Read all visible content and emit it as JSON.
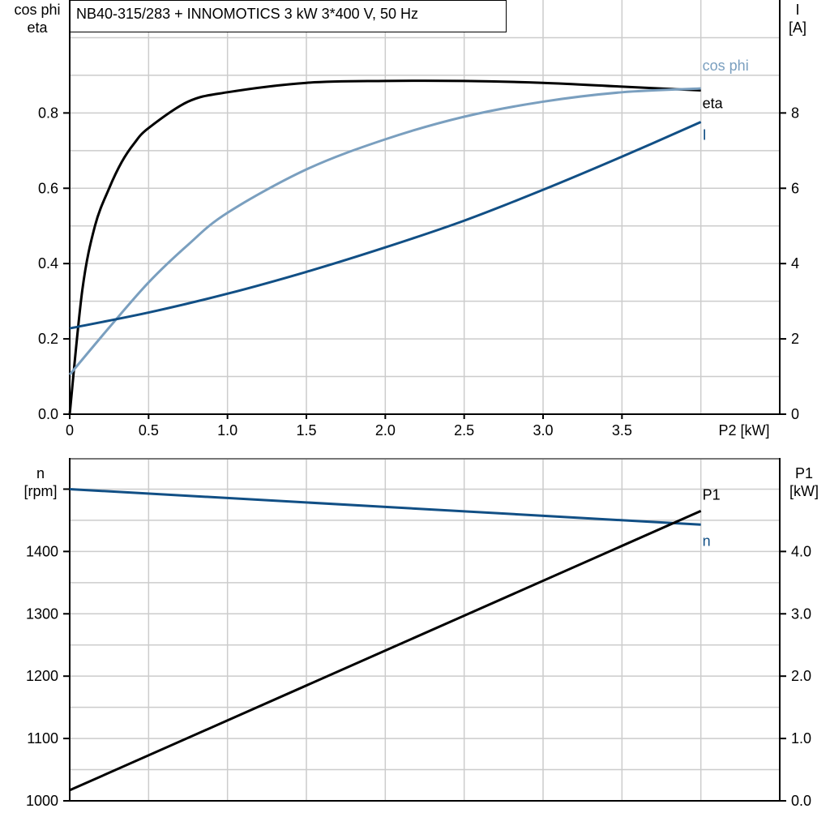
{
  "title": "NB40-315/283 + INNOMOTICS   3 kW   3*400 V, 50 Hz",
  "colors": {
    "eta": "#000000",
    "cos_phi": "#7a9fbf",
    "I": "#114f85",
    "n": "#114f85",
    "P1": "#000000",
    "grid": "#cccccc"
  },
  "chart_data": [
    {
      "type": "line",
      "x_label": "P2 [kW]",
      "x_ticks": [
        "0",
        "0.5",
        "1.0",
        "1.5",
        "2.0",
        "2.5",
        "3.0",
        "3.5"
      ],
      "xlim": [
        0,
        4.5
      ],
      "left_axis": {
        "label_lines": [
          "cos phi",
          "eta"
        ],
        "ylim": [
          0,
          1.1
        ],
        "ticks": [
          "0.0",
          "0.2",
          "0.4",
          "0.6",
          "0.8"
        ]
      },
      "right_axis": {
        "label_lines": [
          "I",
          "[A]"
        ],
        "ylim": [
          0,
          11
        ],
        "ticks": [
          "0",
          "2",
          "4",
          "6",
          "8"
        ]
      },
      "grid": true,
      "series": [
        {
          "name": "eta",
          "axis": "left",
          "x": [
            0,
            0.08,
            0.16,
            0.25,
            0.33,
            0.41,
            0.5,
            0.75,
            1.0,
            1.5,
            2.0,
            2.5,
            3.0,
            3.5,
            4.0
          ],
          "y": [
            0,
            0.33,
            0.5,
            0.6,
            0.67,
            0.72,
            0.76,
            0.83,
            0.855,
            0.88,
            0.885,
            0.885,
            0.88,
            0.87,
            0.86
          ]
        },
        {
          "name": "cos phi",
          "axis": "left",
          "x": [
            0,
            0.25,
            0.5,
            0.75,
            1.0,
            1.5,
            2.0,
            2.5,
            3.0,
            3.5,
            4.0
          ],
          "y": [
            0.105,
            0.23,
            0.35,
            0.45,
            0.535,
            0.65,
            0.73,
            0.79,
            0.83,
            0.855,
            0.865
          ]
        },
        {
          "name": "I",
          "axis": "right",
          "x": [
            0,
            0.5,
            1.0,
            1.5,
            2.0,
            2.5,
            3.0,
            3.5,
            4.0
          ],
          "y": [
            2.28,
            2.7,
            3.2,
            3.78,
            4.43,
            5.14,
            5.96,
            6.84,
            7.76
          ]
        }
      ]
    },
    {
      "type": "line",
      "xlim": [
        0,
        4.5
      ],
      "left_axis": {
        "label_lines": [
          "n",
          "[rpm]"
        ],
        "ylim": [
          1000,
          1550
        ],
        "ticks": [
          "1000",
          "1100",
          "1200",
          "1300",
          "1400"
        ]
      },
      "right_axis": {
        "label_lines": [
          "P1",
          "[kW]"
        ],
        "ylim": [
          0,
          5.5
        ],
        "ticks": [
          "0.0",
          "1.0",
          "2.0",
          "3.0",
          "4.0"
        ]
      },
      "grid": true,
      "series": [
        {
          "name": "n",
          "axis": "left",
          "x": [
            0,
            4.0
          ],
          "y": [
            1500,
            1443
          ]
        },
        {
          "name": "P1",
          "axis": "right",
          "x": [
            0,
            4.0
          ],
          "y": [
            0.17,
            4.65
          ]
        }
      ]
    }
  ]
}
